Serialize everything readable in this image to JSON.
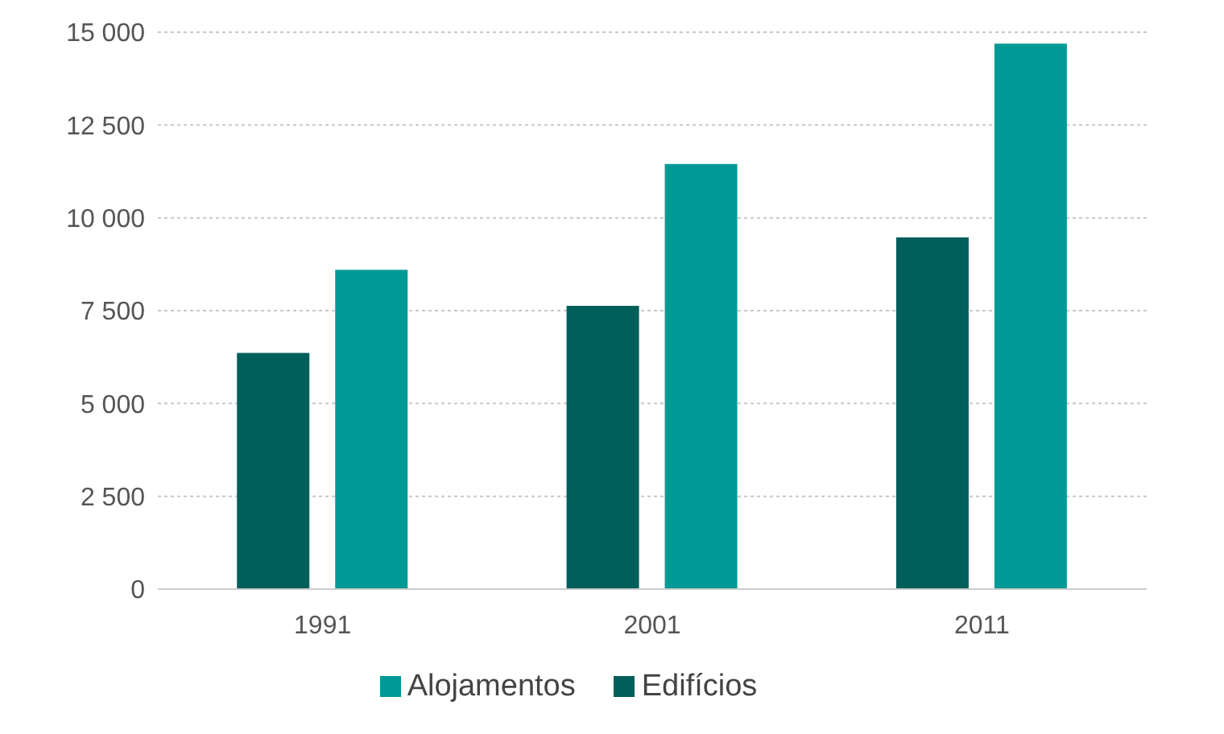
{
  "chart_data": {
    "type": "bar",
    "categories": [
      "1991",
      "2001",
      "2011"
    ],
    "series": [
      {
        "name": "Edifícios",
        "color": "#005f5a",
        "values": [
          6360,
          7630,
          9470
        ]
      },
      {
        "name": "Alojamentos",
        "color": "#009a96",
        "values": [
          8600,
          11450,
          14690
        ]
      }
    ],
    "ylim": [
      0,
      15000
    ],
    "yticks": [
      {
        "value": 0,
        "label": "0"
      },
      {
        "value": 2500,
        "label": "2 500"
      },
      {
        "value": 5000,
        "label": "5 000"
      },
      {
        "value": 7500,
        "label": "7 500"
      },
      {
        "value": 10000,
        "label": "10 000"
      },
      {
        "value": 12500,
        "label": "12 500"
      },
      {
        "value": 15000,
        "label": "15 000"
      }
    ],
    "grid": "y",
    "legend": "bottom"
  }
}
